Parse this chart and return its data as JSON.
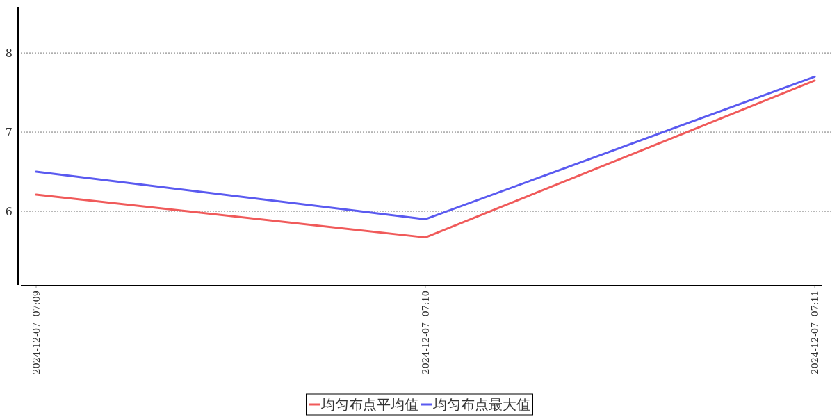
{
  "chart_data": {
    "type": "line",
    "categories": [
      "2024-12-07  07:09",
      "2024-12-07  07:10",
      "2024-12-07  07:11"
    ],
    "series": [
      {
        "name": "均匀布点平均值",
        "color": "#f05a5a",
        "values": [
          6.21,
          5.67,
          7.65
        ]
      },
      {
        "name": "均匀布点最大值",
        "color": "#5a5af0",
        "values": [
          6.5,
          5.9,
          7.7
        ]
      }
    ],
    "ylim": [
      5.07,
      8.58
    ],
    "yticks": [
      6,
      7,
      8
    ],
    "grid": "y",
    "legend": "bottom",
    "marker": "none",
    "line_style": "solid"
  }
}
